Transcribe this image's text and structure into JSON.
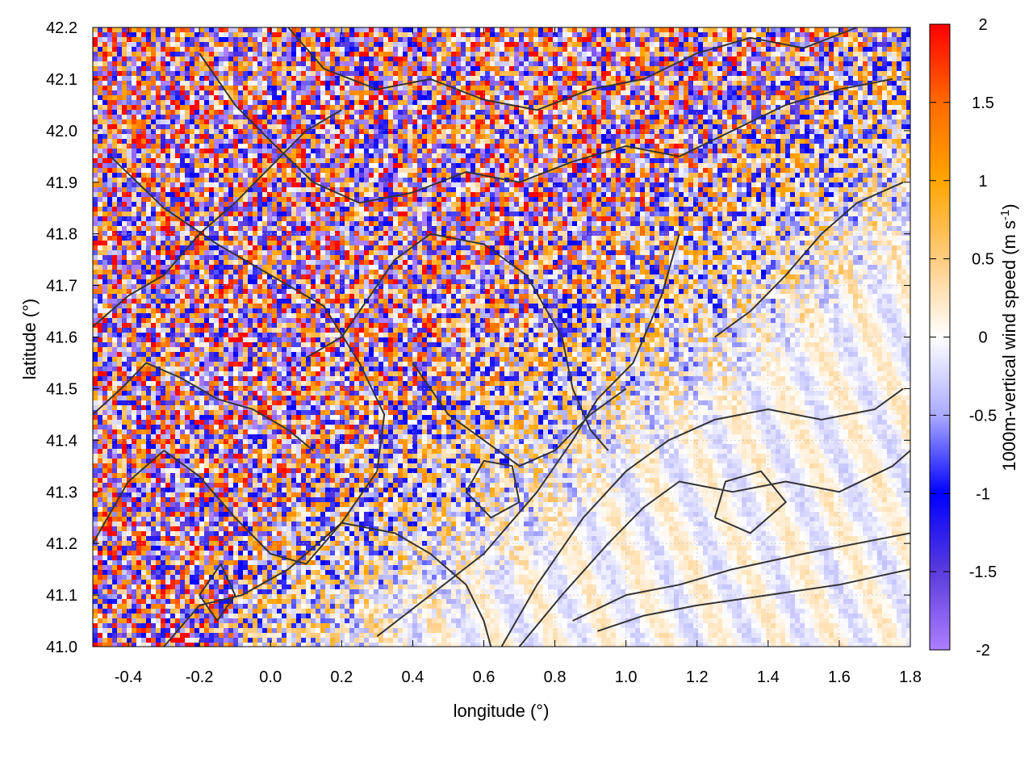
{
  "chart_data": {
    "type": "heatmap",
    "title": "",
    "xlabel": "longitude (°)",
    "ylabel": "latitude (°)",
    "xlim": [
      -0.5,
      1.8
    ],
    "ylim": [
      41.0,
      42.2
    ],
    "x_ticks": [
      -0.4,
      -0.2,
      0.0,
      0.2,
      0.4,
      0.6,
      0.8,
      1.0,
      1.2,
      1.4,
      1.6,
      1.8
    ],
    "x_tick_labels": [
      "-0.4",
      "-0.2",
      "0.0",
      "0.2",
      "0.4",
      "0.6",
      "0.8",
      "1.0",
      "1.2",
      "1.4",
      "1.6",
      "1.8"
    ],
    "y_ticks": [
      41.0,
      41.1,
      41.2,
      41.3,
      41.4,
      41.5,
      41.6,
      41.7,
      41.8,
      41.9,
      42.0,
      42.1,
      42.2
    ],
    "y_tick_labels": [
      "41.0",
      "41.1",
      "41.2",
      "41.3",
      "41.4",
      "41.5",
      "41.6",
      "41.7",
      "41.8",
      "41.9",
      "42.0",
      "42.1",
      "42.2"
    ],
    "colorbar": {
      "label_main": "1000m-vertical wind speed (m s",
      "label_sup": "-1",
      "label_end": ")",
      "range": [
        -2,
        2
      ],
      "ticks": [
        2,
        1.5,
        1,
        0.5,
        0,
        -0.5,
        -1,
        -1.5,
        -2
      ],
      "tick_labels": [
        "2",
        "1.5",
        "1",
        "0.5",
        "0",
        "-0.5",
        "-1",
        "-1.5",
        "-2"
      ],
      "colors": [
        "#ff0000",
        "#ff6a00",
        "#ffa500",
        "#ffcc80",
        "#ffffff",
        "#aaaaff",
        "#0000ff",
        "#5a3bdc",
        "#ad7fff"
      ]
    },
    "grid": true,
    "contour_color": "#333333",
    "contour_lines": [
      {
        "name": "",
        "points": [
          [
            -0.5,
            41.2
          ],
          [
            -0.4,
            41.32
          ],
          [
            -0.3,
            41.38
          ],
          [
            -0.2,
            41.33
          ],
          [
            -0.1,
            41.25
          ],
          [
            0.0,
            41.18
          ],
          [
            0.1,
            41.16
          ],
          [
            0.2,
            41.24
          ],
          [
            0.3,
            41.34
          ],
          [
            0.32,
            41.45
          ],
          [
            0.25,
            41.55
          ],
          [
            0.15,
            41.66
          ],
          [
            0.0,
            41.72
          ],
          [
            -0.15,
            41.78
          ],
          [
            -0.3,
            41.85
          ],
          [
            -0.45,
            41.95
          ]
        ]
      },
      {
        "name": "",
        "points": [
          [
            -0.3,
            41.0
          ],
          [
            -0.2,
            41.08
          ],
          [
            -0.08,
            41.1
          ],
          [
            0.05,
            41.15
          ],
          [
            0.2,
            41.24
          ],
          [
            0.35,
            41.22
          ],
          [
            0.45,
            41.18
          ],
          [
            0.55,
            41.12
          ],
          [
            0.6,
            41.05
          ],
          [
            0.62,
            41.0
          ]
        ]
      },
      {
        "name": "",
        "points": [
          [
            0.3,
            41.02
          ],
          [
            0.45,
            41.1
          ],
          [
            0.6,
            41.18
          ],
          [
            0.75,
            41.3
          ],
          [
            0.85,
            41.4
          ],
          [
            0.92,
            41.48
          ],
          [
            1.02,
            41.55
          ],
          [
            1.1,
            41.68
          ],
          [
            1.15,
            41.8
          ]
        ]
      },
      {
        "name": "",
        "points": [
          [
            0.65,
            41.0
          ],
          [
            0.75,
            41.12
          ],
          [
            0.88,
            41.25
          ],
          [
            1.0,
            41.34
          ],
          [
            1.12,
            41.4
          ],
          [
            1.25,
            41.44
          ],
          [
            1.4,
            41.46
          ],
          [
            1.55,
            41.44
          ],
          [
            1.7,
            41.46
          ],
          [
            1.78,
            41.5
          ]
        ]
      },
      {
        "name": "",
        "points": [
          [
            0.7,
            41.0
          ],
          [
            0.82,
            41.1
          ],
          [
            0.95,
            41.2
          ],
          [
            1.05,
            41.27
          ],
          [
            1.15,
            41.32
          ],
          [
            1.3,
            41.3
          ],
          [
            1.45,
            41.32
          ],
          [
            1.6,
            41.3
          ],
          [
            1.75,
            41.35
          ],
          [
            1.8,
            41.38
          ]
        ]
      },
      {
        "name": "",
        "points": [
          [
            0.85,
            41.05
          ],
          [
            1.0,
            41.1
          ],
          [
            1.15,
            41.12
          ],
          [
            1.3,
            41.15
          ],
          [
            1.5,
            41.18
          ],
          [
            1.65,
            41.2
          ],
          [
            1.8,
            41.22
          ]
        ]
      },
      {
        "name": "",
        "points": [
          [
            0.92,
            41.03
          ],
          [
            1.05,
            41.06
          ],
          [
            1.2,
            41.08
          ],
          [
            1.4,
            41.1
          ],
          [
            1.6,
            41.12
          ],
          [
            1.8,
            41.15
          ]
        ]
      },
      {
        "name": "",
        "points": [
          [
            0.1,
            41.56
          ],
          [
            0.2,
            41.6
          ],
          [
            0.28,
            41.68
          ],
          [
            0.35,
            41.75
          ],
          [
            0.45,
            41.8
          ],
          [
            0.6,
            41.78
          ],
          [
            0.72,
            41.72
          ],
          [
            0.82,
            41.6
          ],
          [
            0.85,
            41.5
          ],
          [
            0.9,
            41.42
          ],
          [
            0.95,
            41.38
          ]
        ]
      },
      {
        "name": "",
        "points": [
          [
            -0.2,
            42.15
          ],
          [
            -0.1,
            42.05
          ],
          [
            0.0,
            41.98
          ],
          [
            0.12,
            41.9
          ],
          [
            0.25,
            41.86
          ],
          [
            0.4,
            41.88
          ],
          [
            0.55,
            41.92
          ],
          [
            0.7,
            41.9
          ],
          [
            0.85,
            41.94
          ],
          [
            1.0,
            41.97
          ],
          [
            1.15,
            41.95
          ],
          [
            1.3,
            42.0
          ],
          [
            1.45,
            42.05
          ],
          [
            1.6,
            42.08
          ],
          [
            1.75,
            42.1
          ]
        ]
      },
      {
        "name": "",
        "points": [
          [
            0.05,
            42.2
          ],
          [
            0.15,
            42.12
          ],
          [
            0.3,
            42.08
          ],
          [
            0.45,
            42.1
          ],
          [
            0.6,
            42.06
          ],
          [
            0.75,
            42.04
          ],
          [
            0.9,
            42.08
          ],
          [
            1.05,
            42.1
          ],
          [
            1.2,
            42.15
          ],
          [
            1.35,
            42.18
          ],
          [
            1.5,
            42.16
          ],
          [
            1.65,
            42.2
          ]
        ]
      },
      {
        "name": "",
        "points": [
          [
            -0.5,
            41.62
          ],
          [
            -0.4,
            41.68
          ],
          [
            -0.3,
            41.72
          ],
          [
            -0.2,
            41.8
          ],
          [
            -0.1,
            41.86
          ],
          [
            0.0,
            41.93
          ],
          [
            0.1,
            42.0
          ],
          [
            0.2,
            42.04
          ]
        ]
      },
      {
        "name": "",
        "points": [
          [
            -0.5,
            41.45
          ],
          [
            -0.42,
            41.5
          ],
          [
            -0.35,
            41.55
          ],
          [
            -0.25,
            41.52
          ],
          [
            -0.15,
            41.48
          ],
          [
            -0.05,
            41.46
          ],
          [
            0.05,
            41.42
          ],
          [
            0.12,
            41.38
          ]
        ]
      },
      {
        "name": "",
        "points": [
          [
            1.25,
            41.6
          ],
          [
            1.35,
            41.65
          ],
          [
            1.45,
            41.72
          ],
          [
            1.55,
            41.8
          ],
          [
            1.65,
            41.86
          ],
          [
            1.78,
            41.9
          ]
        ]
      },
      {
        "name": "",
        "points": [
          [
            0.4,
            41.55
          ],
          [
            0.5,
            41.45
          ],
          [
            0.6,
            41.4
          ],
          [
            0.7,
            41.35
          ],
          [
            0.8,
            41.38
          ],
          [
            0.9,
            41.45
          ],
          [
            1.0,
            41.5
          ]
        ]
      },
      {
        "name": "",
        "points": [
          [
            0.55,
            41.3
          ],
          [
            0.62,
            41.25
          ],
          [
            0.7,
            41.28
          ],
          [
            0.68,
            41.35
          ],
          [
            0.6,
            41.36
          ],
          [
            0.55,
            41.3
          ]
        ]
      },
      {
        "name": "",
        "points": [
          [
            1.25,
            41.25
          ],
          [
            1.35,
            41.22
          ],
          [
            1.45,
            41.28
          ],
          [
            1.38,
            41.34
          ],
          [
            1.28,
            41.32
          ],
          [
            1.25,
            41.25
          ]
        ]
      },
      {
        "name": "",
        "points": [
          [
            -0.2,
            41.1
          ],
          [
            -0.15,
            41.05
          ],
          [
            -0.1,
            41.1
          ],
          [
            -0.14,
            41.16
          ],
          [
            -0.2,
            41.1
          ]
        ]
      }
    ]
  }
}
